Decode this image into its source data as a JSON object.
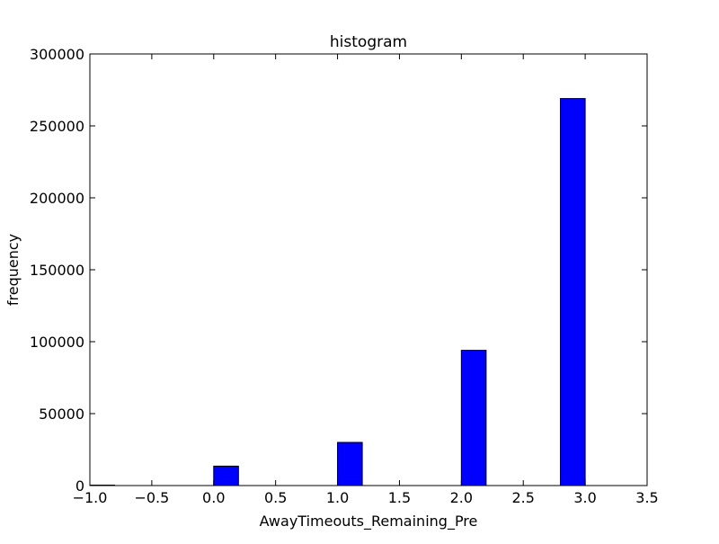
{
  "chart_data": {
    "type": "bar",
    "title": "histogram",
    "xlabel": "AwayTimeouts_Remaining_Pre",
    "ylabel": "frequency",
    "xlim": [
      -1.0,
      3.5
    ],
    "ylim": [
      0,
      300000
    ],
    "x_ticks": [
      -1.0,
      -0.5,
      0.0,
      0.5,
      1.0,
      1.5,
      2.0,
      2.5,
      3.0,
      3.5
    ],
    "x_tick_labels": [
      "−1.0",
      "−0.5",
      "0.0",
      "0.5",
      "1.0",
      "1.5",
      "2.0",
      "2.5",
      "3.0",
      "3.5"
    ],
    "y_ticks": [
      0,
      50000,
      100000,
      150000,
      200000,
      250000,
      300000
    ],
    "y_tick_labels": [
      "0",
      "50000",
      "100000",
      "150000",
      "200000",
      "250000",
      "300000"
    ],
    "bins": [
      {
        "x0": -1.0,
        "x1": -0.8,
        "value": 300
      },
      {
        "x0": 0.0,
        "x1": 0.2,
        "value": 13500
      },
      {
        "x0": 1.0,
        "x1": 1.2,
        "value": 30000
      },
      {
        "x0": 2.0,
        "x1": 2.2,
        "value": 94000
      },
      {
        "x0": 2.8,
        "x1": 3.0,
        "value": 269000
      }
    ],
    "bar_color": "#0000ff",
    "edge_color": "#000000",
    "grid": false,
    "legend": "none"
  }
}
